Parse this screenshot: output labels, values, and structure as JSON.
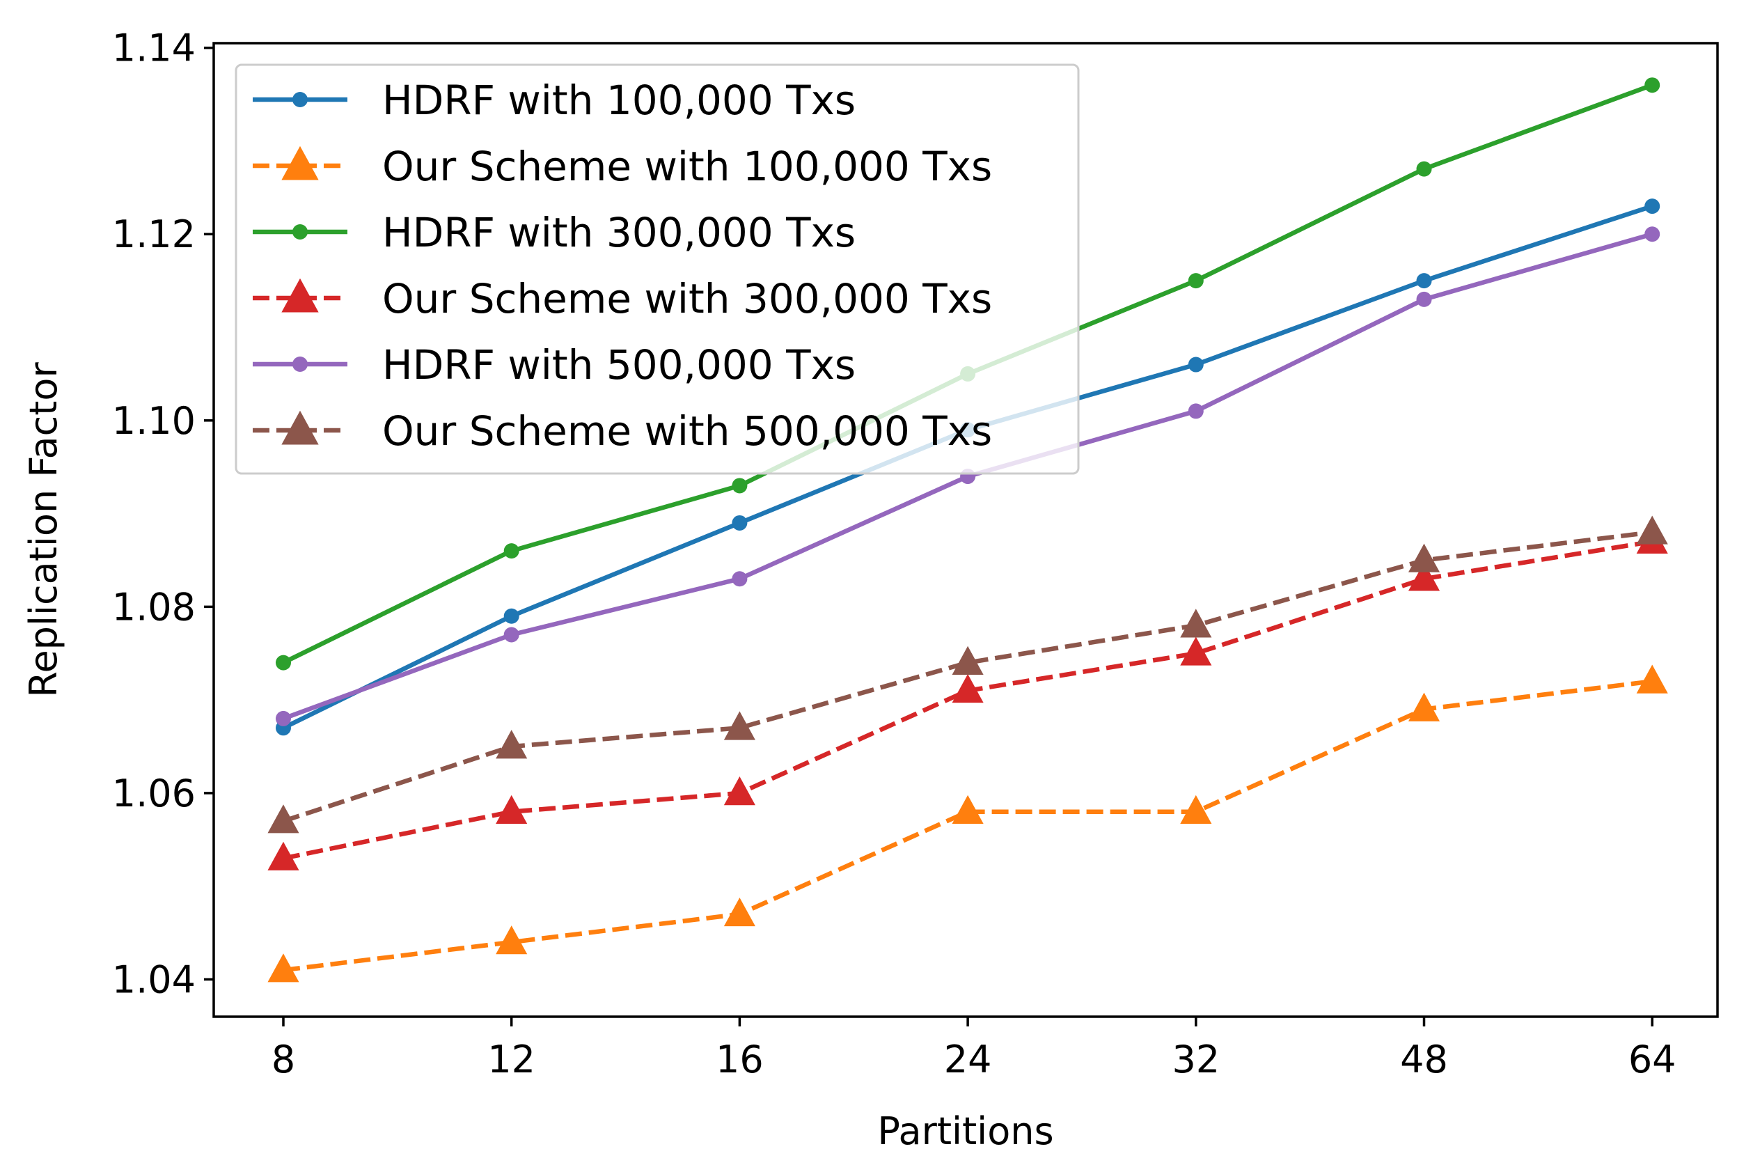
{
  "chart_data": {
    "type": "line",
    "title": "",
    "xlabel": "Partitions",
    "ylabel": "Replication Factor",
    "categories": [
      "8",
      "12",
      "16",
      "24",
      "32",
      "48",
      "64"
    ],
    "ylim": [
      1.036,
      1.1405
    ],
    "yticks": [
      "1.04",
      "1.06",
      "1.08",
      "1.10",
      "1.12",
      "1.14"
    ],
    "ytick_values": [
      1.04,
      1.06,
      1.08,
      1.1,
      1.12,
      1.14
    ],
    "legend_position": "upper-left",
    "series": [
      {
        "name": "HDRF with 100,000 Txs",
        "values": [
          1.067,
          1.079,
          1.089,
          1.099,
          1.106,
          1.115,
          1.123
        ],
        "color": "#1f77b4",
        "dash": "solid",
        "marker": "circle"
      },
      {
        "name": "Our Scheme with 100,000 Txs",
        "values": [
          1.041,
          1.044,
          1.047,
          1.058,
          1.058,
          1.069,
          1.072
        ],
        "color": "#ff7f0e",
        "dash": "dashed",
        "marker": "triangle"
      },
      {
        "name": "HDRF with 300,000 Txs",
        "values": [
          1.074,
          1.086,
          1.093,
          1.105,
          1.115,
          1.127,
          1.136
        ],
        "color": "#2ca02c",
        "dash": "solid",
        "marker": "circle"
      },
      {
        "name": "Our Scheme with 300,000 Txs",
        "values": [
          1.053,
          1.058,
          1.06,
          1.071,
          1.075,
          1.083,
          1.087
        ],
        "color": "#d62728",
        "dash": "dashed",
        "marker": "triangle"
      },
      {
        "name": "HDRF with 500,000 Txs",
        "values": [
          1.068,
          1.077,
          1.083,
          1.094,
          1.101,
          1.113,
          1.12
        ],
        "color": "#9467bd",
        "dash": "solid",
        "marker": "circle"
      },
      {
        "name": "Our Scheme with 500,000 Txs",
        "values": [
          1.057,
          1.065,
          1.067,
          1.074,
          1.078,
          1.085,
          1.088
        ],
        "color": "#8c564b",
        "dash": "dashed",
        "marker": "triangle"
      }
    ]
  }
}
